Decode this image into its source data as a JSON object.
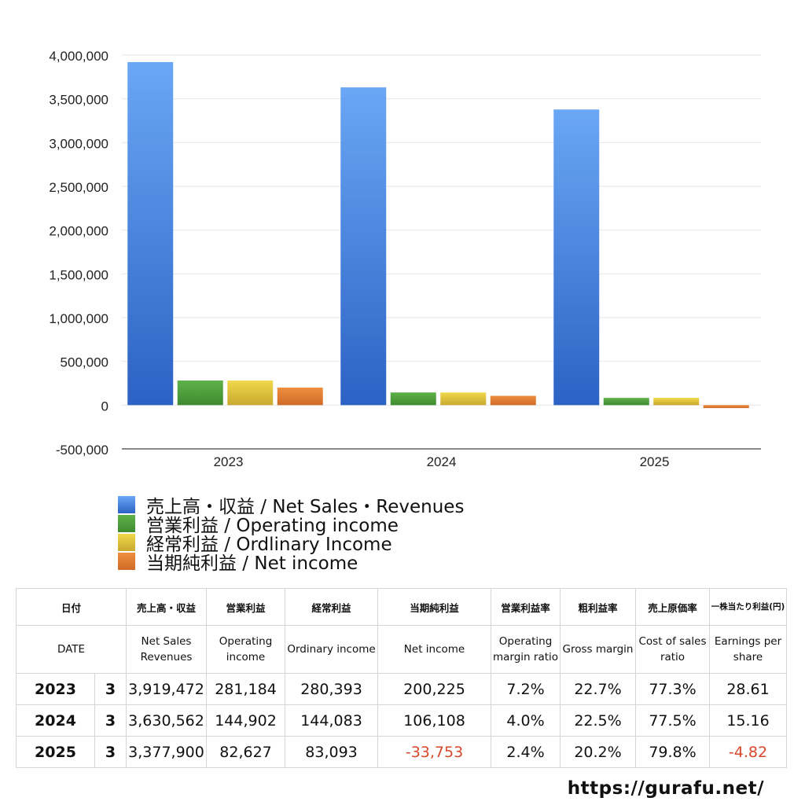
{
  "chart_data": {
    "type": "bar",
    "categories": [
      "2023",
      "2024",
      "2025"
    ],
    "series": [
      {
        "name": "売上高・収益 / Net Sales・Revenues",
        "values": [
          3919472,
          3630562,
          3377900
        ],
        "color": "#3f7fe0"
      },
      {
        "name": "営業利益 / Operating income",
        "values": [
          281184,
          144902,
          82627
        ],
        "color": "#4f9a3a"
      },
      {
        "name": "経常利益 / Ordlinary Income",
        "values": [
          280393,
          144083,
          83093
        ],
        "color": "#dcbf3c"
      },
      {
        "name": "当期純利益 / Net income",
        "values": [
          200225,
          106108,
          -33753
        ],
        "color": "#e07b35"
      }
    ],
    "ylim": [
      -500000,
      4000000
    ],
    "yticks": [
      "4,000,000",
      "3,500,000",
      "3,000,000",
      "2,500,000",
      "2,000,000",
      "1,500,000",
      "1,000,000",
      "500,000",
      "0",
      "-500,000"
    ],
    "title": "",
    "xlabel": "",
    "ylabel": "",
    "grid": true,
    "legend_position": "bottom-left"
  },
  "legend": [
    {
      "label": "売上高・収益 / Net Sales・Revenues",
      "color": "#3f7fe0"
    },
    {
      "label": "営業利益 / Operating income",
      "color": "#4f9a3a"
    },
    {
      "label": "経常利益 / Ordlinary Income",
      "color": "#dcbf3c"
    },
    {
      "label": "当期純利益 / Net income",
      "color": "#e07b35"
    }
  ],
  "table": {
    "header_jp": {
      "date": "日付",
      "sales": "売上高・収益",
      "op": "営業利益",
      "ord": "経常利益",
      "net": "当期純利益",
      "opm": "営業利益率",
      "gm": "粗利益率",
      "cost": "売上原価率",
      "eps": "一株当たり利益(円)"
    },
    "header_en": {
      "date": "DATE",
      "sales": "Net Sales Revenues",
      "op": "Operating income",
      "ord": "Ordinary income",
      "net": "Net income",
      "opm": "Operating margin ratio",
      "gm": "Gross margin",
      "cost": "Cost of sales ratio",
      "eps": "Earnings per share"
    },
    "rows": [
      {
        "year": "2023",
        "month": "3",
        "sales": "3,919,472",
        "op": "281,184",
        "ord": "280,393",
        "net": "200,225",
        "opm": "7.2%",
        "gm": "22.7%",
        "cost": "77.3%",
        "eps": "28.61"
      },
      {
        "year": "2024",
        "month": "3",
        "sales": "3,630,562",
        "op": "144,902",
        "ord": "144,083",
        "net": "106,108",
        "opm": "4.0%",
        "gm": "22.5%",
        "cost": "77.5%",
        "eps": "15.16"
      },
      {
        "year": "2025",
        "month": "3",
        "sales": "3,377,900",
        "op": "82,627",
        "ord": "83,093",
        "net": "-33,753",
        "opm": "2.4%",
        "gm": "20.2%",
        "cost": "79.8%",
        "eps": "-4.82"
      }
    ],
    "negative_color": "#d9482b"
  },
  "footer": "https://gurafu.net/"
}
